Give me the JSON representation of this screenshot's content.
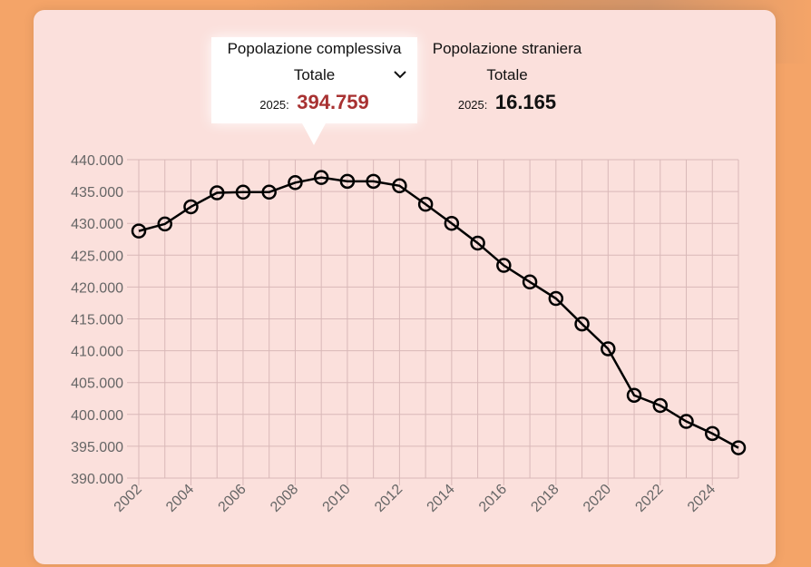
{
  "tabs": [
    {
      "title": "Popolazione complessiva",
      "subtitle": "Totale",
      "year": "2025:",
      "value": "394.759",
      "dropdown_icon": "chevron-down-icon",
      "value_color": "#a83232"
    },
    {
      "title": "Popolazione straniera",
      "subtitle": "Totale",
      "year": "2025:",
      "value": "16.165",
      "value_color": "#111111"
    }
  ],
  "chart_data": {
    "type": "line",
    "x": [
      2002,
      2003,
      2004,
      2005,
      2006,
      2007,
      2008,
      2009,
      2010,
      2011,
      2012,
      2013,
      2014,
      2015,
      2016,
      2017,
      2018,
      2019,
      2020,
      2021,
      2022,
      2023,
      2024,
      2025
    ],
    "series": [
      {
        "values": [
          428800,
          429900,
          432600,
          434800,
          434900,
          434900,
          436400,
          437200,
          436600,
          436600,
          435900,
          433000,
          430000,
          426900,
          423400,
          420800,
          418200,
          414200,
          410300,
          403000,
          401400,
          398900,
          397000,
          394759
        ]
      }
    ],
    "ylim": [
      390000,
      440000
    ],
    "y_ticks": [
      "440.000",
      "435.000",
      "430.000",
      "425.000",
      "420.000",
      "415.000",
      "410.000",
      "405.000",
      "400.000",
      "395.000",
      "390.000"
    ],
    "x_ticks": [
      "2002",
      "2004",
      "2006",
      "2008",
      "2010",
      "2012",
      "2014",
      "2016",
      "2018",
      "2020",
      "2022",
      "2024"
    ],
    "xlim": [
      2002,
      2025
    ],
    "grid": true,
    "line_color": "#000000",
    "grid_color": "#d9b8b8"
  }
}
